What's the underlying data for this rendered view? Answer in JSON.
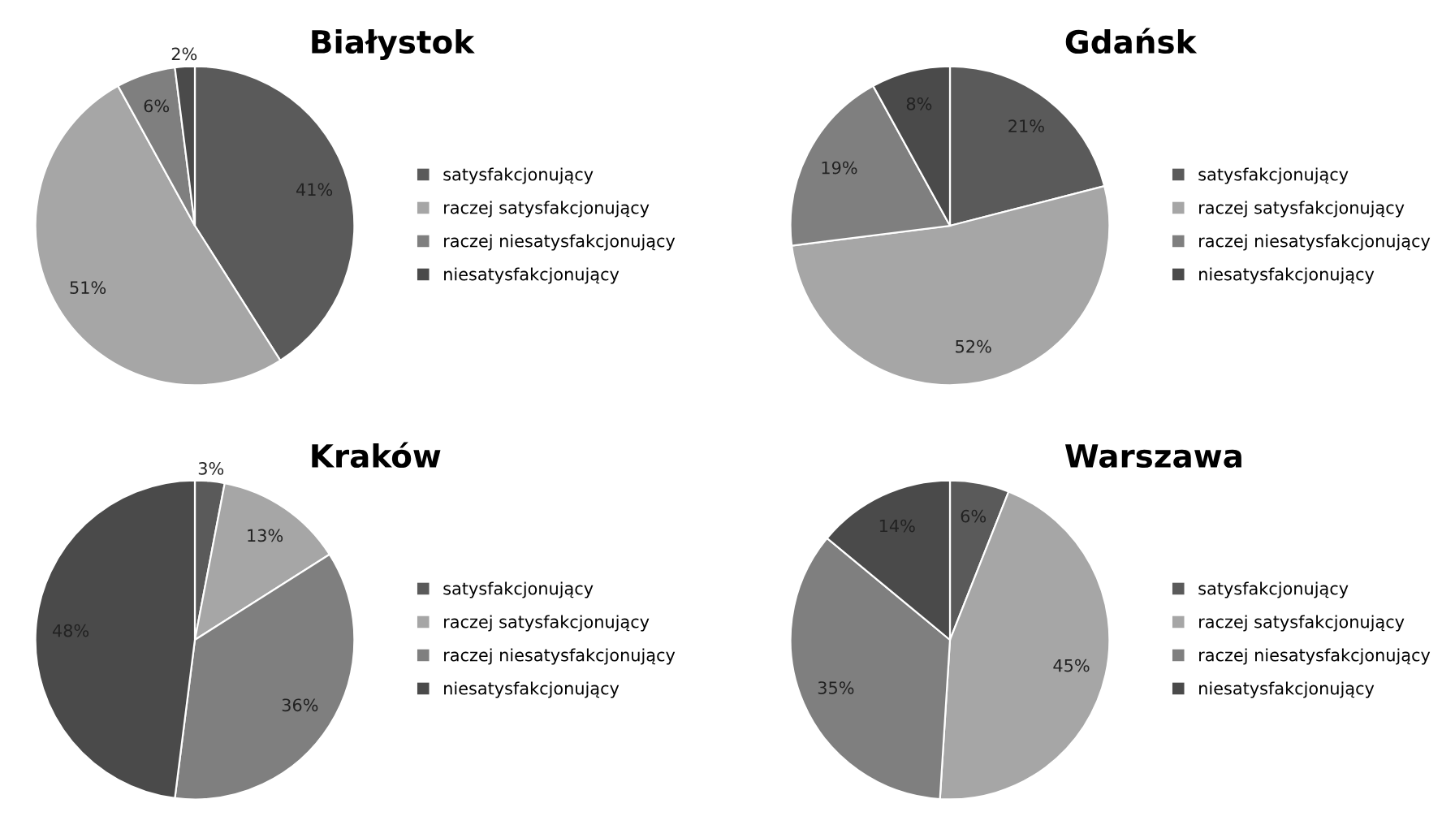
{
  "chart_data": [
    {
      "type": "pie",
      "title": "Białystok",
      "categories": [
        "satysfakcjonujący",
        "raczej satysfakcjonujący",
        "raczej niesatysfakcjonujący",
        "niesatysfakcjonujący"
      ],
      "values": [
        41,
        51,
        6,
        2
      ],
      "value_labels": [
        "41%",
        "51%",
        "6%",
        "2%"
      ],
      "colors": [
        "#5a5a5a",
        "#a6a6a6",
        "#7f7f7f",
        "#4a4a4a"
      ],
      "legend": "right"
    },
    {
      "type": "pie",
      "title": "Gdańsk",
      "categories": [
        "satysfakcjonujący",
        "raczej satysfakcjonujący",
        "raczej niesatysfakcjonujący",
        "niesatysfakcjonujący"
      ],
      "values": [
        21,
        52,
        19,
        8
      ],
      "value_labels": [
        "21%",
        "52%",
        "19%",
        "8%"
      ],
      "colors": [
        "#5a5a5a",
        "#a6a6a6",
        "#7f7f7f",
        "#4a4a4a"
      ],
      "legend": "right"
    },
    {
      "type": "pie",
      "title": "Kraków",
      "categories": [
        "satysfakcjonujący",
        "raczej satysfakcjonujący",
        "raczej niesatysfakcjonujący",
        "niesatysfakcjonujący"
      ],
      "values": [
        3,
        13,
        36,
        48
      ],
      "value_labels": [
        "3%",
        "13%",
        "36%",
        "48%"
      ],
      "colors": [
        "#5a5a5a",
        "#a6a6a6",
        "#7f7f7f",
        "#4a4a4a"
      ],
      "legend": "right"
    },
    {
      "type": "pie",
      "title": "Warszawa",
      "categories": [
        "satysfakcjonujący",
        "raczej satysfakcjonujący",
        "raczej niesatysfakcjonujący",
        "niesatysfakcjonujący"
      ],
      "values": [
        6,
        45,
        35,
        14
      ],
      "value_labels": [
        "6%",
        "45%",
        "35%",
        "14%"
      ],
      "colors": [
        "#5a5a5a",
        "#a6a6a6",
        "#7f7f7f",
        "#4a4a4a"
      ],
      "legend": "right"
    }
  ]
}
